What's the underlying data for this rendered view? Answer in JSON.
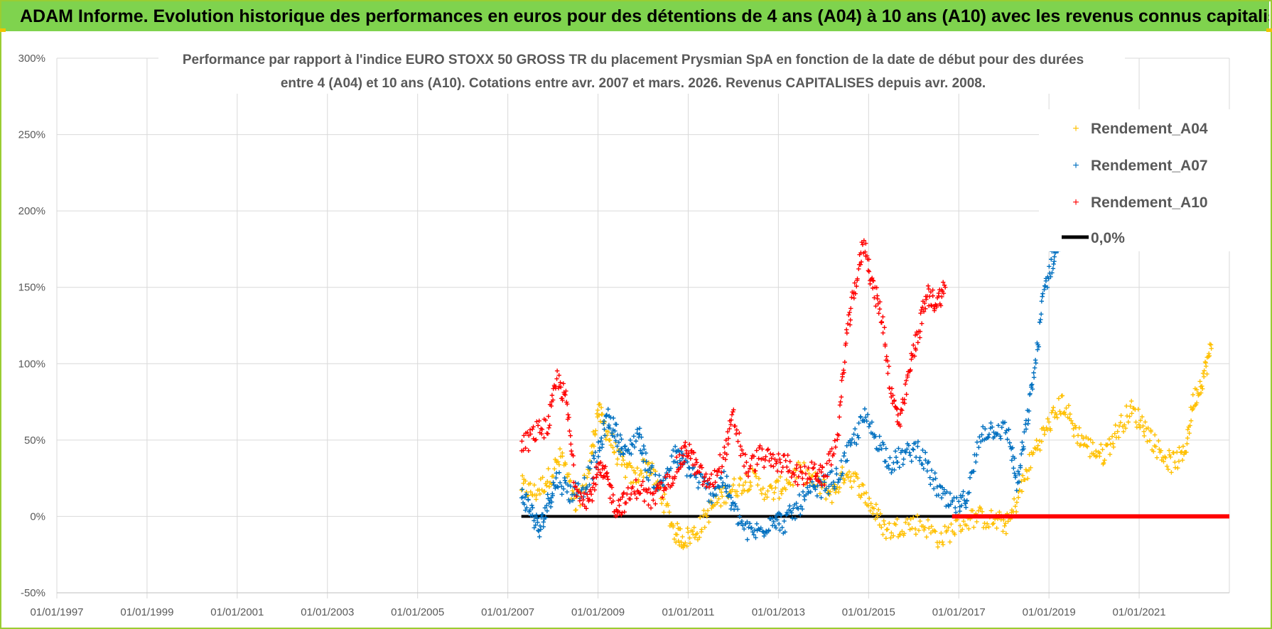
{
  "header": {
    "title": "ADAM Informe. Evolution historique des performances en euros pour des détentions de 4 ans (A04) à 10 ans (A10) avec les revenus connus capitalisés"
  },
  "colors": {
    "banner": "#7fd34e",
    "a04": "#ffc000",
    "a07": "#0070c0",
    "a10": "#ff0000",
    "zero": "#000000",
    "grid": "#d9d9d9"
  },
  "chart_data": {
    "type": "scatter",
    "title_line1": "Performance par rapport à l'indice EURO STOXX 50 GROSS TR  du placement Prysmian SpA en fonction de la date de début pour des durées",
    "title_line2": "entre 4 (A04) et 10 ans (A10). Cotations entre avr. 2007 et mars. 2026. Revenus CAPITALISES depuis avr. 2008.",
    "xlabel": "",
    "ylabel": "",
    "x_range": [
      1997.0,
      2023.0
    ],
    "ylim": [
      -50,
      300
    ],
    "y_ticks": [
      "-50%",
      "0%",
      "50%",
      "100%",
      "150%",
      "200%",
      "250%",
      "300%"
    ],
    "y_tick_values": [
      -50,
      0,
      50,
      100,
      150,
      200,
      250,
      300
    ],
    "x_ticks": [
      "01/01/1997",
      "01/01/1999",
      "01/01/2001",
      "01/01/2003",
      "01/01/2005",
      "01/01/2007",
      "01/01/2009",
      "01/01/2011",
      "01/01/2013",
      "01/01/2015",
      "01/01/2017",
      "01/01/2019",
      "01/01/2021"
    ],
    "x_tick_values": [
      1997,
      1999,
      2001,
      2003,
      2005,
      2007,
      2009,
      2011,
      2013,
      2015,
      2017,
      2019,
      2021
    ],
    "grid": true,
    "legend_position": "top-right",
    "series": [
      {
        "name": "Rendement_A04",
        "color": "#ffc000",
        "marker": "+",
        "points": [
          [
            2007.3,
            20
          ],
          [
            2007.6,
            15
          ],
          [
            2007.9,
            25
          ],
          [
            2008.2,
            40
          ],
          [
            2008.5,
            5
          ],
          [
            2008.8,
            30
          ],
          [
            2009.0,
            70
          ],
          [
            2009.2,
            55
          ],
          [
            2009.5,
            35
          ],
          [
            2009.8,
            25
          ],
          [
            2010.1,
            35
          ],
          [
            2010.4,
            15
          ],
          [
            2010.7,
            -10
          ],
          [
            2010.9,
            -15
          ],
          [
            2011.2,
            -10
          ],
          [
            2011.5,
            5
          ],
          [
            2011.8,
            15
          ],
          [
            2012.1,
            20
          ],
          [
            2012.4,
            25
          ],
          [
            2012.8,
            15
          ],
          [
            2013.1,
            20
          ],
          [
            2013.5,
            30
          ],
          [
            2013.9,
            20
          ],
          [
            2014.2,
            15
          ],
          [
            2014.5,
            30
          ],
          [
            2014.8,
            20
          ],
          [
            2015.1,
            5
          ],
          [
            2015.4,
            -10
          ],
          [
            2015.8,
            -5
          ],
          [
            2016.2,
            -5
          ],
          [
            2016.6,
            -15
          ],
          [
            2017.0,
            -5
          ],
          [
            2017.4,
            0
          ],
          [
            2017.8,
            -3
          ],
          [
            2018.1,
            -5
          ],
          [
            2018.4,
            20
          ],
          [
            2018.7,
            45
          ],
          [
            2019.0,
            60
          ],
          [
            2019.3,
            75
          ],
          [
            2019.6,
            55
          ],
          [
            2019.9,
            45
          ],
          [
            2020.2,
            40
          ],
          [
            2020.5,
            55
          ],
          [
            2020.8,
            70
          ],
          [
            2021.1,
            60
          ],
          [
            2021.4,
            45
          ],
          [
            2021.7,
            35
          ],
          [
            2022.0,
            40
          ],
          [
            2022.2,
            75
          ],
          [
            2022.4,
            90
          ],
          [
            2022.6,
            110
          ]
        ]
      },
      {
        "name": "Rendement_A07",
        "color": "#0070c0",
        "marker": "+",
        "points": [
          [
            2007.3,
            15
          ],
          [
            2007.5,
            5
          ],
          [
            2007.7,
            -10
          ],
          [
            2007.9,
            10
          ],
          [
            2008.1,
            25
          ],
          [
            2008.4,
            15
          ],
          [
            2008.7,
            20
          ],
          [
            2009.0,
            40
          ],
          [
            2009.2,
            65
          ],
          [
            2009.4,
            55
          ],
          [
            2009.6,
            40
          ],
          [
            2009.9,
            55
          ],
          [
            2010.1,
            30
          ],
          [
            2010.4,
            20
          ],
          [
            2010.7,
            40
          ],
          [
            2010.9,
            35
          ],
          [
            2011.2,
            25
          ],
          [
            2011.5,
            15
          ],
          [
            2011.8,
            25
          ],
          [
            2012.0,
            5
          ],
          [
            2012.3,
            -10
          ],
          [
            2012.6,
            -10
          ],
          [
            2012.9,
            0
          ],
          [
            2013.1,
            -5
          ],
          [
            2013.4,
            5
          ],
          [
            2013.7,
            15
          ],
          [
            2014.0,
            20
          ],
          [
            2014.3,
            25
          ],
          [
            2014.6,
            45
          ],
          [
            2014.9,
            65
          ],
          [
            2015.2,
            50
          ],
          [
            2015.5,
            35
          ],
          [
            2015.8,
            40
          ],
          [
            2016.1,
            45
          ],
          [
            2016.4,
            25
          ],
          [
            2016.7,
            10
          ],
          [
            2017.0,
            5
          ],
          [
            2017.2,
            15
          ],
          [
            2017.5,
            55
          ],
          [
            2017.8,
            58
          ],
          [
            2018.1,
            55
          ],
          [
            2018.3,
            20
          ],
          [
            2018.5,
            60
          ],
          [
            2018.7,
            100
          ],
          [
            2018.9,
            150
          ],
          [
            2019.1,
            170
          ],
          [
            2019.2,
            180
          ]
        ]
      },
      {
        "name": "Rendement_A10",
        "color": "#ff0000",
        "marker": "+",
        "points": [
          [
            2007.3,
            45
          ],
          [
            2007.6,
            55
          ],
          [
            2007.9,
            60
          ],
          [
            2008.1,
            90
          ],
          [
            2008.3,
            75
          ],
          [
            2008.5,
            20
          ],
          [
            2008.8,
            10
          ],
          [
            2009.0,
            30
          ],
          [
            2009.2,
            25
          ],
          [
            2009.4,
            5
          ],
          [
            2009.6,
            10
          ],
          [
            2009.9,
            20
          ],
          [
            2010.2,
            10
          ],
          [
            2010.5,
            20
          ],
          [
            2010.8,
            35
          ],
          [
            2011.0,
            45
          ],
          [
            2011.2,
            30
          ],
          [
            2011.5,
            20
          ],
          [
            2011.8,
            40
          ],
          [
            2012.0,
            65
          ],
          [
            2012.3,
            30
          ],
          [
            2012.6,
            40
          ],
          [
            2012.9,
            35
          ],
          [
            2013.2,
            35
          ],
          [
            2013.5,
            25
          ],
          [
            2013.8,
            30
          ],
          [
            2014.0,
            25
          ],
          [
            2014.3,
            50
          ],
          [
            2014.5,
            115
          ],
          [
            2014.7,
            150
          ],
          [
            2014.9,
            180
          ],
          [
            2015.1,
            150
          ],
          [
            2015.3,
            130
          ],
          [
            2015.5,
            80
          ],
          [
            2015.7,
            60
          ],
          [
            2015.9,
            95
          ],
          [
            2016.1,
            120
          ],
          [
            2016.3,
            145
          ],
          [
            2016.5,
            140
          ],
          [
            2016.7,
            150
          ]
        ]
      },
      {
        "name": "0,0%",
        "color": "#000000",
        "marker": "line",
        "x_start": 2007.3,
        "x_end": 2023.0,
        "value": 0
      }
    ],
    "a10_zero_segment": {
      "color": "#ff0000",
      "x_start": 2016.85,
      "x_end": 2023.0,
      "value": 0
    }
  }
}
